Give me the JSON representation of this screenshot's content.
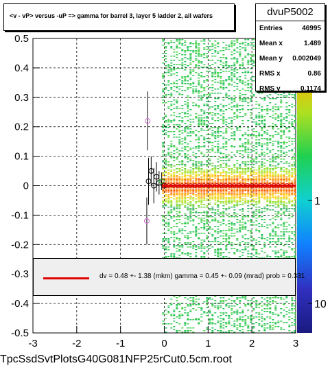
{
  "chart_data": {
    "type": "scatter",
    "title": "<v - vP>     versus  -uP =>  gamma for barrel 3, layer 5 ladder 2, all wafers",
    "xlim": [
      -3,
      3
    ],
    "ylim": [
      -0.5,
      0.5
    ],
    "x_ticks": [
      "-3",
      "-2",
      "-1",
      "0",
      "1",
      "2",
      "3"
    ],
    "y_ticks": [
      "-0.5",
      "-0.4",
      "-0.3",
      "-0.2",
      "-0.1",
      "0",
      "0.1",
      "0.2",
      "0.3",
      "0.4",
      "0.5"
    ],
    "colorbar_ticks": [
      "10",
      "1",
      "10"
    ],
    "grid": true,
    "profile_points": [
      {
        "x": -0.38,
        "y": 0.22,
        "err": 0.1,
        "color": "#cc66cc"
      },
      {
        "x": -0.4,
        "y": -0.12,
        "err": 0.08,
        "color": "#cc66cc"
      },
      {
        "x": -0.36,
        "y": 0.015,
        "err": 0.08
      },
      {
        "x": -0.3,
        "y": 0.05,
        "err": 0.05
      },
      {
        "x": -0.24,
        "y": 0.0,
        "err": 0.06
      },
      {
        "x": -0.18,
        "y": 0.03,
        "err": 0.05
      },
      {
        "x": -0.12,
        "y": 0.01,
        "err": 0.04
      },
      {
        "x": -0.06,
        "y": 0.015,
        "err": 0.03,
        "color": "#22aa22"
      },
      {
        "x": 0.0,
        "y": 0.0,
        "err": 0.01
      }
    ],
    "fit_line": {
      "x": [
        -0.05,
        3.0
      ],
      "y": [
        0.0,
        0.0
      ]
    }
  },
  "stats": {
    "name": "dvuP5002",
    "rows": [
      {
        "label": "Entries",
        "value": "46995"
      },
      {
        "label": "Mean x",
        "value": "1.489"
      },
      {
        "label": "Mean y",
        "value": "0.002049"
      },
      {
        "label": "RMS x",
        "value": "0.86"
      },
      {
        "label": "RMS y",
        "value": "0.1174"
      }
    ]
  },
  "fit_legend": "dv =    0.48 +-  1.38 (mkm) gamma =    0.45 +-  0.09 (mrad) prob = 0.331",
  "footer": "TpcSsdSvtPlotsG40G081NFP25rCut0.5cm.root"
}
